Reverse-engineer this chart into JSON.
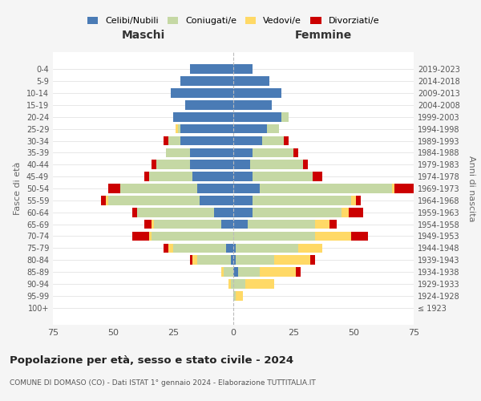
{
  "age_groups": [
    "0-4",
    "5-9",
    "10-14",
    "15-19",
    "20-24",
    "25-29",
    "30-34",
    "35-39",
    "40-44",
    "45-49",
    "50-54",
    "55-59",
    "60-64",
    "65-69",
    "70-74",
    "75-79",
    "80-84",
    "85-89",
    "90-94",
    "95-99",
    "100+"
  ],
  "birth_years": [
    "2019-2023",
    "2014-2018",
    "2009-2013",
    "2004-2008",
    "1999-2003",
    "1994-1998",
    "1989-1993",
    "1984-1988",
    "1979-1983",
    "1974-1978",
    "1969-1973",
    "1964-1968",
    "1959-1963",
    "1954-1958",
    "1949-1953",
    "1944-1948",
    "1939-1943",
    "1934-1938",
    "1929-1933",
    "1924-1928",
    "≤ 1923"
  ],
  "colors": {
    "celibi": "#4a7bb5",
    "coniugati": "#c5d8a4",
    "vedovi": "#ffd966",
    "divorziati": "#cc0000"
  },
  "maschi": {
    "celibi": [
      18,
      22,
      26,
      20,
      25,
      22,
      22,
      18,
      18,
      17,
      15,
      14,
      8,
      5,
      0,
      3,
      1,
      0,
      0,
      0,
      0
    ],
    "coniugati": [
      0,
      0,
      0,
      0,
      0,
      1,
      5,
      10,
      14,
      18,
      32,
      38,
      32,
      28,
      34,
      22,
      14,
      4,
      1,
      0,
      0
    ],
    "vedovi": [
      0,
      0,
      0,
      0,
      0,
      1,
      0,
      0,
      0,
      0,
      0,
      1,
      0,
      1,
      1,
      2,
      2,
      1,
      1,
      0,
      0
    ],
    "divorziati": [
      0,
      0,
      0,
      0,
      0,
      0,
      2,
      0,
      2,
      2,
      5,
      2,
      2,
      3,
      7,
      2,
      1,
      0,
      0,
      0,
      0
    ]
  },
  "femmine": {
    "nubili": [
      8,
      15,
      20,
      16,
      20,
      14,
      12,
      8,
      7,
      8,
      11,
      8,
      8,
      6,
      0,
      1,
      1,
      2,
      0,
      0,
      0
    ],
    "coniugate": [
      0,
      0,
      0,
      0,
      3,
      5,
      9,
      17,
      22,
      25,
      55,
      41,
      37,
      28,
      34,
      26,
      16,
      9,
      5,
      1,
      0
    ],
    "vedove": [
      0,
      0,
      0,
      0,
      0,
      0,
      0,
      0,
      0,
      0,
      1,
      2,
      3,
      6,
      15,
      10,
      15,
      15,
      12,
      3,
      0
    ],
    "divorziate": [
      0,
      0,
      0,
      0,
      0,
      0,
      2,
      2,
      2,
      4,
      8,
      2,
      6,
      3,
      7,
      0,
      2,
      2,
      0,
      0,
      0
    ]
  },
  "xlim": 75,
  "title": "Popolazione per età, sesso e stato civile - 2024",
  "subtitle": "COMUNE DI DOMASO (CO) - Dati ISTAT 1° gennaio 2024 - Elaborazione TUTTITALIA.IT",
  "ylabel_left": "Fasce di età",
  "ylabel_right": "Anni di nascita",
  "xlabel_left": "Maschi",
  "xlabel_right": "Femmine",
  "legend_labels": [
    "Celibi/Nubili",
    "Coniugati/e",
    "Vedovi/e",
    "Divorziati/e"
  ],
  "bg_color": "#f5f5f5",
  "plot_bg_color": "#ffffff"
}
